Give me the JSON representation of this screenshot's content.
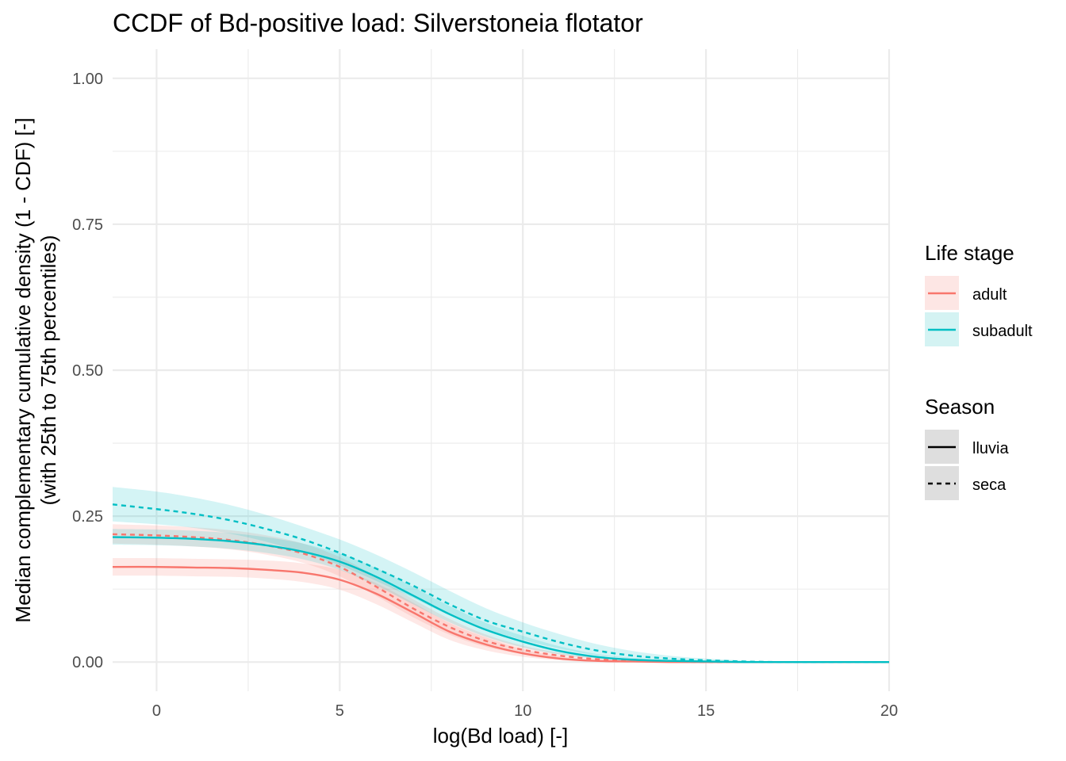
{
  "chart_data": {
    "type": "line",
    "title": "CCDF of Bd-positive load: Silverstoneia flotator",
    "xlabel": "log(Bd load) [-]",
    "ylabel_lines": [
      "Median complementary cumulative density (1 - CDF) [-]",
      "(with 25th to 75th percentiles)"
    ],
    "xlim": [
      -1.2,
      20
    ],
    "ylim": [
      -0.05,
      1.05
    ],
    "x_ticks": [
      0,
      5,
      10,
      15,
      20
    ],
    "x_tick_labels": [
      "0",
      "5",
      "10",
      "15",
      "20"
    ],
    "y_ticks": [
      0,
      0.25,
      0.5,
      0.75,
      1.0
    ],
    "y_tick_labels": [
      "0.00",
      "0.25",
      "0.50",
      "0.75",
      "1.00"
    ],
    "grid": true,
    "legend_placement": "right",
    "legend": {
      "colour_title": "Life stage",
      "colour_entries": [
        {
          "label": "adult",
          "color": "#F8766D"
        },
        {
          "label": "subadult",
          "color": "#00BFC4"
        }
      ],
      "linetype_title": "Season",
      "linetype_entries": [
        {
          "label": "lluvia",
          "dash": "solid"
        },
        {
          "label": "seca",
          "dash": "dashed"
        }
      ]
    },
    "x": [
      -1.2,
      0,
      1,
      2,
      3,
      4,
      5,
      6,
      7,
      8,
      9,
      10,
      11,
      12,
      13,
      14,
      15,
      16,
      17,
      18,
      19,
      20
    ],
    "series": [
      {
        "name": "adult",
        "season": "lluvia",
        "color": "#F8766D",
        "dash": "solid",
        "median": [
          0.163,
          0.163,
          0.162,
          0.161,
          0.158,
          0.153,
          0.141,
          0.117,
          0.085,
          0.052,
          0.03,
          0.015,
          0.006,
          0.002,
          0.001,
          0.0,
          0.0,
          0.0,
          0.0,
          0.0,
          0.0,
          0.0
        ],
        "lower": [
          0.148,
          0.148,
          0.147,
          0.146,
          0.143,
          0.137,
          0.124,
          0.099,
          0.068,
          0.038,
          0.02,
          0.009,
          0.003,
          0.001,
          0.0,
          0.0,
          0.0,
          0.0,
          0.0,
          0.0,
          0.0,
          0.0
        ],
        "upper": [
          0.178,
          0.178,
          0.177,
          0.176,
          0.174,
          0.169,
          0.158,
          0.135,
          0.102,
          0.067,
          0.042,
          0.022,
          0.01,
          0.004,
          0.002,
          0.001,
          0.0,
          0.0,
          0.0,
          0.0,
          0.0,
          0.0
        ]
      },
      {
        "name": "adult",
        "season": "seca",
        "color": "#F8766D",
        "dash": "dashed",
        "median": [
          0.219,
          0.217,
          0.214,
          0.209,
          0.2,
          0.186,
          0.163,
          0.129,
          0.092,
          0.06,
          0.036,
          0.021,
          0.011,
          0.005,
          0.002,
          0.001,
          0.0,
          0.0,
          0.0,
          0.0,
          0.0,
          0.0
        ],
        "lower": [
          0.203,
          0.201,
          0.198,
          0.193,
          0.184,
          0.17,
          0.147,
          0.113,
          0.077,
          0.047,
          0.026,
          0.014,
          0.006,
          0.002,
          0.001,
          0.0,
          0.0,
          0.0,
          0.0,
          0.0,
          0.0,
          0.0
        ],
        "upper": [
          0.236,
          0.234,
          0.231,
          0.226,
          0.217,
          0.203,
          0.18,
          0.146,
          0.108,
          0.074,
          0.047,
          0.028,
          0.016,
          0.008,
          0.004,
          0.002,
          0.001,
          0.0,
          0.0,
          0.0,
          0.0,
          0.0
        ]
      },
      {
        "name": "subadult",
        "season": "lluvia",
        "color": "#00BFC4",
        "dash": "solid",
        "median": [
          0.214,
          0.213,
          0.211,
          0.207,
          0.2,
          0.189,
          0.172,
          0.146,
          0.114,
          0.082,
          0.055,
          0.035,
          0.019,
          0.009,
          0.004,
          0.002,
          0.001,
          0.0,
          0.0,
          0.0,
          0.0,
          0.0
        ],
        "lower": [
          0.201,
          0.2,
          0.198,
          0.194,
          0.187,
          0.176,
          0.158,
          0.131,
          0.099,
          0.068,
          0.043,
          0.025,
          0.013,
          0.006,
          0.002,
          0.001,
          0.0,
          0.0,
          0.0,
          0.0,
          0.0,
          0.0
        ],
        "upper": [
          0.228,
          0.227,
          0.225,
          0.221,
          0.214,
          0.203,
          0.186,
          0.161,
          0.129,
          0.096,
          0.067,
          0.045,
          0.027,
          0.014,
          0.007,
          0.003,
          0.001,
          0.0,
          0.0,
          0.0,
          0.0,
          0.0
        ]
      },
      {
        "name": "subadult",
        "season": "seca",
        "color": "#00BFC4",
        "dash": "dashed",
        "median": [
          0.27,
          0.262,
          0.254,
          0.243,
          0.228,
          0.21,
          0.187,
          0.16,
          0.131,
          0.099,
          0.071,
          0.052,
          0.034,
          0.02,
          0.011,
          0.006,
          0.003,
          0.001,
          0.0,
          0.0,
          0.0,
          0.0
        ],
        "lower": [
          0.241,
          0.236,
          0.23,
          0.22,
          0.206,
          0.188,
          0.166,
          0.139,
          0.11,
          0.08,
          0.056,
          0.038,
          0.023,
          0.012,
          0.006,
          0.003,
          0.001,
          0.0,
          0.0,
          0.0,
          0.0,
          0.0
        ],
        "upper": [
          0.3,
          0.292,
          0.282,
          0.269,
          0.252,
          0.232,
          0.21,
          0.184,
          0.154,
          0.122,
          0.092,
          0.068,
          0.048,
          0.031,
          0.019,
          0.011,
          0.006,
          0.003,
          0.001,
          0.001,
          0.0,
          0.0
        ]
      }
    ]
  }
}
